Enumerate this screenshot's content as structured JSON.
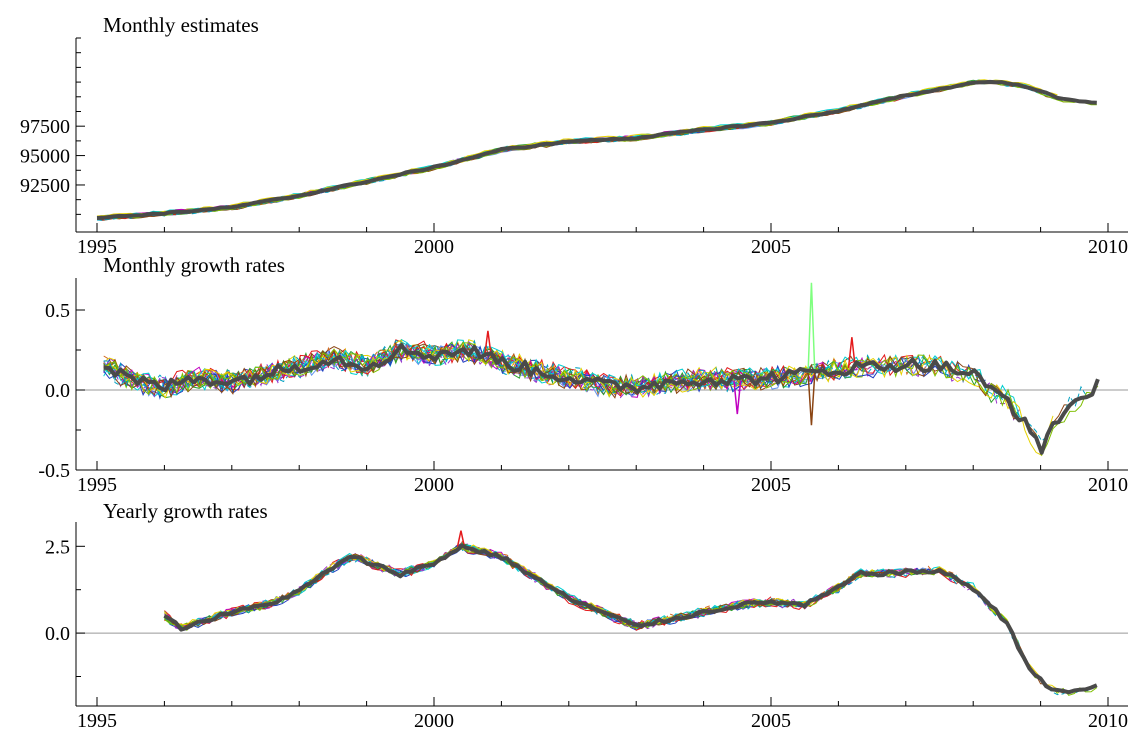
{
  "chart_data": [
    {
      "type": "line",
      "title": "Monthly estimates",
      "xlim": [
        1995,
        2010
      ],
      "ylim": [
        88500,
        105000
      ],
      "yticks": [
        {
          "v": 92500,
          "label": "92500"
        },
        {
          "v": 95000,
          "label": "95000"
        },
        {
          "v": 97500,
          "label": "97500"
        }
      ],
      "xticks": [
        {
          "v": 1995,
          "label": "1995"
        },
        {
          "v": 2000,
          "label": "2000"
        },
        {
          "v": 2005,
          "label": "2005"
        },
        {
          "v": 2010,
          "label": "2010"
        }
      ],
      "zero_line": false,
      "grid": false,
      "start": 1995.0,
      "ends": [
        2005.0,
        2005.25,
        2005.5,
        2005.75,
        2006.0,
        2006.25,
        2006.5,
        2006.75,
        2007.0,
        2007.25,
        2007.5,
        2007.75,
        2008.0,
        2008.25,
        2008.5,
        2008.75,
        2009.0,
        2009.25,
        2009.5,
        2009.75,
        2009.9
      ],
      "anchors": [
        [
          1995.0,
          89700
        ],
        [
          1996.0,
          90100
        ],
        [
          1997.0,
          90600
        ],
        [
          1998.0,
          91600
        ],
        [
          1999.0,
          92800
        ],
        [
          2000.0,
          94000
        ],
        [
          2001.0,
          95500
        ],
        [
          2002.0,
          96200
        ],
        [
          2003.0,
          96500
        ],
        [
          2004.0,
          97200
        ],
        [
          2005.0,
          97800
        ],
        [
          2006.0,
          98800
        ],
        [
          2007.0,
          100100
        ],
        [
          2008.0,
          101200
        ],
        [
          2008.3,
          101300
        ],
        [
          2008.8,
          100900
        ],
        [
          2009.3,
          99800
        ],
        [
          2009.9,
          99500
        ]
      ],
      "highlight_series": "thick dark gray final estimate",
      "series_colors": [
        "#e41a1c",
        "#1f3fbf",
        "#2ca02c",
        "#9932cc",
        "#00ced1",
        "#e6d200",
        "#8b4513",
        "#00a0c0",
        "#7fbf00",
        "#c000c0",
        "#6495ed",
        "#d2691e"
      ],
      "highlight_color": "#4a4a4a"
    },
    {
      "type": "line",
      "title": "Monthly growth rates",
      "xlim": [
        1995,
        2010
      ],
      "ylim": [
        -0.5,
        0.7
      ],
      "yticks": [
        {
          "v": -0.5,
          "label": "-0.5"
        },
        {
          "v": 0.0,
          "label": "0.0"
        },
        {
          "v": 0.5,
          "label": "0.5"
        }
      ],
      "xticks": [
        {
          "v": 1995,
          "label": "1995"
        },
        {
          "v": 2000,
          "label": "2000"
        },
        {
          "v": 2005,
          "label": "2005"
        },
        {
          "v": 2010,
          "label": "2010"
        }
      ],
      "zero_line": true,
      "grid": false,
      "start": 1995.1,
      "ends": [
        2005.0,
        2005.25,
        2005.5,
        2005.75,
        2006.0,
        2006.25,
        2006.5,
        2006.75,
        2007.0,
        2007.25,
        2007.5,
        2007.75,
        2008.0,
        2008.25,
        2008.5,
        2008.75,
        2009.0,
        2009.25,
        2009.5,
        2009.75,
        2009.9
      ],
      "anchors": [
        [
          1995.1,
          0.15
        ],
        [
          1995.6,
          0.05
        ],
        [
          1996.0,
          0.02
        ],
        [
          1996.5,
          0.08
        ],
        [
          1997.0,
          0.05
        ],
        [
          1997.5,
          0.1
        ],
        [
          1998.0,
          0.15
        ],
        [
          1998.5,
          0.2
        ],
        [
          1999.0,
          0.15
        ],
        [
          1999.5,
          0.25
        ],
        [
          2000.0,
          0.22
        ],
        [
          2000.5,
          0.25
        ],
        [
          2001.0,
          0.18
        ],
        [
          2001.5,
          0.12
        ],
        [
          2002.0,
          0.08
        ],
        [
          2002.5,
          0.03
        ],
        [
          2003.0,
          0.02
        ],
        [
          2003.5,
          0.05
        ],
        [
          2004.0,
          0.07
        ],
        [
          2004.5,
          0.06
        ],
        [
          2005.0,
          0.08
        ],
        [
          2005.5,
          0.1
        ],
        [
          2006.0,
          0.13
        ],
        [
          2006.5,
          0.15
        ],
        [
          2007.0,
          0.16
        ],
        [
          2007.5,
          0.15
        ],
        [
          2008.0,
          0.1
        ],
        [
          2008.25,
          0.0
        ],
        [
          2008.5,
          -0.05
        ],
        [
          2008.75,
          -0.2
        ],
        [
          2009.0,
          -0.38
        ],
        [
          2009.2,
          -0.2
        ],
        [
          2009.5,
          -0.08
        ],
        [
          2009.9,
          0.05
        ]
      ],
      "spikes": [
        [
          2000.8,
          0.37
        ],
        [
          2005.6,
          0.67
        ],
        [
          2005.6,
          -0.22
        ],
        [
          2004.5,
          -0.15
        ],
        [
          2006.2,
          0.33
        ]
      ],
      "highlight_series": "thick dark gray final estimate",
      "series_colors": [
        "#e41a1c",
        "#1f3fbf",
        "#2ca02c",
        "#9932cc",
        "#00ced1",
        "#e6d200",
        "#8b4513",
        "#00a0c0",
        "#7fbf00",
        "#c000c0",
        "#6495ed",
        "#d2691e"
      ],
      "highlight_color": "#4a4a4a"
    },
    {
      "type": "line",
      "title": "Yearly growth rates",
      "xlim": [
        1995,
        2010
      ],
      "ylim": [
        -2.1,
        3.2
      ],
      "yticks": [
        {
          "v": 0.0,
          "label": "0.0"
        },
        {
          "v": 2.5,
          "label": "2.5"
        }
      ],
      "xticks": [
        {
          "v": 1995,
          "label": "1995"
        },
        {
          "v": 2000,
          "label": "2000"
        },
        {
          "v": 2005,
          "label": "2005"
        },
        {
          "v": 2010,
          "label": "2010"
        }
      ],
      "zero_line": true,
      "grid": false,
      "start": 1996.0,
      "ends": [
        2005.0,
        2005.25,
        2005.5,
        2005.75,
        2006.0,
        2006.25,
        2006.5,
        2006.75,
        2007.0,
        2007.25,
        2007.5,
        2007.75,
        2008.0,
        2008.25,
        2008.5,
        2008.75,
        2009.0,
        2009.25,
        2009.5,
        2009.75,
        2009.9
      ],
      "anchors": [
        [
          1996.0,
          0.5
        ],
        [
          1996.25,
          0.15
        ],
        [
          1997.0,
          0.6
        ],
        [
          1997.5,
          0.8
        ],
        [
          1998.0,
          1.2
        ],
        [
          1998.5,
          1.9
        ],
        [
          1998.8,
          2.2
        ],
        [
          1999.5,
          1.7
        ],
        [
          2000.0,
          2.0
        ],
        [
          2000.4,
          2.5
        ],
        [
          2001.0,
          2.2
        ],
        [
          2001.5,
          1.6
        ],
        [
          2002.0,
          1.0
        ],
        [
          2002.5,
          0.6
        ],
        [
          2003.0,
          0.2
        ],
        [
          2003.5,
          0.4
        ],
        [
          2004.0,
          0.6
        ],
        [
          2004.5,
          0.8
        ],
        [
          2005.0,
          0.9
        ],
        [
          2005.5,
          0.8
        ],
        [
          2006.0,
          1.3
        ],
        [
          2006.3,
          1.7
        ],
        [
          2007.0,
          1.75
        ],
        [
          2007.5,
          1.8
        ],
        [
          2008.0,
          1.3
        ],
        [
          2008.5,
          0.3
        ],
        [
          2008.8,
          -0.9
        ],
        [
          2009.1,
          -1.6
        ],
        [
          2009.5,
          -1.7
        ],
        [
          2009.9,
          -1.5
        ]
      ],
      "spikes": [
        [
          2000.4,
          2.95
        ]
      ],
      "highlight_series": "thick dark gray final estimate",
      "series_colors": [
        "#e41a1c",
        "#1f3fbf",
        "#2ca02c",
        "#9932cc",
        "#00ced1",
        "#e6d200",
        "#8b4513",
        "#00a0c0",
        "#7fbf00",
        "#c000c0",
        "#6495ed",
        "#d2691e"
      ],
      "highlight_color": "#4a4a4a"
    }
  ]
}
